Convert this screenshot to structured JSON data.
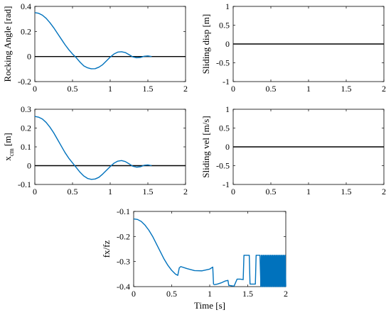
{
  "figure": {
    "line_color": "#0072BD",
    "zero_line_color": "#000000",
    "axis_color": "#000000",
    "time_label": "Time [s]"
  },
  "chart_data": [
    {
      "id": "rocking",
      "type": "line",
      "ylabel": "Rocking Angle [rad]",
      "xlim": [
        0,
        2
      ],
      "ylim": [
        -0.2,
        0.4
      ],
      "xticks": [
        0,
        0.5,
        1,
        1.5,
        2
      ],
      "xtick_labels": [
        "0",
        "0.5",
        "1",
        "1.5",
        "2"
      ],
      "yticks": [
        -0.2,
        0,
        0.2,
        0.4
      ],
      "ytick_labels": [
        "-0.2",
        "0",
        "0.2",
        "0.4"
      ],
      "zero_line": true,
      "x": [
        0,
        0.05,
        0.1,
        0.15,
        0.2,
        0.25,
        0.3,
        0.35,
        0.4,
        0.45,
        0.5,
        0.55,
        0.6,
        0.65,
        0.7,
        0.75,
        0.8,
        0.85,
        0.9,
        0.95,
        1.0,
        1.05,
        1.1,
        1.15,
        1.2,
        1.25,
        1.3,
        1.35,
        1.4,
        1.45,
        1.5,
        1.55
      ],
      "y": [
        0.35,
        0.345,
        0.33,
        0.305,
        0.27,
        0.23,
        0.185,
        0.14,
        0.095,
        0.055,
        0.02,
        -0.01,
        -0.045,
        -0.075,
        -0.09,
        -0.098,
        -0.097,
        -0.085,
        -0.065,
        -0.035,
        -0.005,
        0.02,
        0.035,
        0.038,
        0.032,
        0.015,
        -0.003,
        -0.01,
        -0.008,
        0.002,
        0.005,
        0.0
      ]
    },
    {
      "id": "sliding-disp",
      "type": "line",
      "ylabel": "Sliding disp [m]",
      "xlim": [
        0,
        2
      ],
      "ylim": [
        -1,
        1
      ],
      "xticks": [
        0,
        0.5,
        1,
        1.5,
        2
      ],
      "xtick_labels": [
        "0",
        "0.5",
        "1",
        "1.5",
        "2"
      ],
      "yticks": [
        -1,
        -0.5,
        0,
        0.5,
        1
      ],
      "ytick_labels": [
        "-1",
        "-0.5",
        "0",
        "0.5",
        "1"
      ],
      "zero_line": true,
      "x": [],
      "y": []
    },
    {
      "id": "xcm",
      "type": "line",
      "ylabel_main": "x",
      "ylabel_sub": "cm",
      "ylabel_unit": " [m]",
      "xlim": [
        0,
        2
      ],
      "ylim": [
        -0.1,
        0.3
      ],
      "xticks": [
        0,
        0.5,
        1,
        1.5,
        2
      ],
      "xtick_labels": [
        "0",
        "0.5",
        "1",
        "1.5",
        "2"
      ],
      "yticks": [
        -0.1,
        0,
        0.1,
        0.2,
        0.3
      ],
      "ytick_labels": [
        "-0.1",
        "0",
        "0.1",
        "0.2",
        "0.3"
      ],
      "zero_line": true,
      "x": [
        0,
        0.05,
        0.1,
        0.15,
        0.2,
        0.25,
        0.3,
        0.35,
        0.4,
        0.45,
        0.5,
        0.55,
        0.6,
        0.65,
        0.7,
        0.75,
        0.8,
        0.85,
        0.9,
        0.95,
        1.0,
        1.05,
        1.1,
        1.15,
        1.2,
        1.25,
        1.3,
        1.35,
        1.4,
        1.45,
        1.5,
        1.55
      ],
      "y": [
        0.262,
        0.258,
        0.248,
        0.23,
        0.205,
        0.175,
        0.14,
        0.105,
        0.07,
        0.04,
        0.015,
        -0.01,
        -0.035,
        -0.055,
        -0.068,
        -0.073,
        -0.071,
        -0.062,
        -0.045,
        -0.025,
        -0.005,
        0.013,
        0.024,
        0.027,
        0.022,
        0.01,
        -0.003,
        -0.008,
        -0.006,
        0.002,
        0.004,
        0.0
      ]
    },
    {
      "id": "sliding-vel",
      "type": "line",
      "ylabel": "Sliding vel [m/s]",
      "xlim": [
        0,
        2
      ],
      "ylim": [
        -1,
        1
      ],
      "xticks": [
        0,
        0.5,
        1,
        1.5,
        2
      ],
      "xtick_labels": [
        "0",
        "0.5",
        "1",
        "1.5",
        "2"
      ],
      "yticks": [
        -1,
        -0.5,
        0,
        0.5,
        1
      ],
      "ytick_labels": [
        "-1",
        "-0.5",
        "0",
        "0.5",
        "1"
      ],
      "zero_line": true,
      "x": [],
      "y": []
    },
    {
      "id": "fxfz",
      "type": "line",
      "ylabel": "fx/fz",
      "xlabel": "Time [s]",
      "xlim": [
        0,
        2
      ],
      "ylim": [
        -0.4,
        -0.1
      ],
      "xticks": [
        0,
        0.5,
        1,
        1.5,
        2
      ],
      "xtick_labels": [
        "0",
        "0.5",
        "1",
        "1.5",
        "2"
      ],
      "yticks": [
        -0.4,
        -0.3,
        -0.2,
        -0.1
      ],
      "ytick_labels": [
        "-0.4",
        "-0.3",
        "-0.2",
        "-0.1"
      ],
      "zero_line": false,
      "x": [
        0,
        0.05,
        0.1,
        0.15,
        0.2,
        0.25,
        0.3,
        0.35,
        0.4,
        0.45,
        0.5,
        0.55,
        0.58,
        0.6,
        0.62,
        0.7,
        0.8,
        0.9,
        1.0,
        1.04,
        1.05,
        1.06,
        1.1,
        1.15,
        1.2,
        1.24,
        1.25,
        1.32,
        1.36,
        1.4,
        1.44,
        1.45,
        1.46,
        1.5,
        1.52,
        1.53,
        1.56,
        1.6,
        1.61,
        1.62,
        1.66,
        1.67
      ],
      "y": [
        -0.13,
        -0.132,
        -0.14,
        -0.155,
        -0.175,
        -0.2,
        -0.23,
        -0.26,
        -0.29,
        -0.315,
        -0.335,
        -0.35,
        -0.355,
        -0.325,
        -0.32,
        -0.328,
        -0.336,
        -0.337,
        -0.33,
        -0.322,
        -0.39,
        -0.392,
        -0.39,
        -0.385,
        -0.378,
        -0.375,
        -0.395,
        -0.398,
        -0.37,
        -0.37,
        -0.372,
        -0.275,
        -0.275,
        -0.275,
        -0.275,
        -0.39,
        -0.39,
        -0.39,
        -0.275,
        -0.275,
        -0.275,
        -0.37
      ],
      "oscillation": {
        "x_start": 1.67,
        "x_end": 2.0,
        "y_high": -0.275,
        "y_low": -0.4,
        "cycles": 24
      }
    }
  ]
}
